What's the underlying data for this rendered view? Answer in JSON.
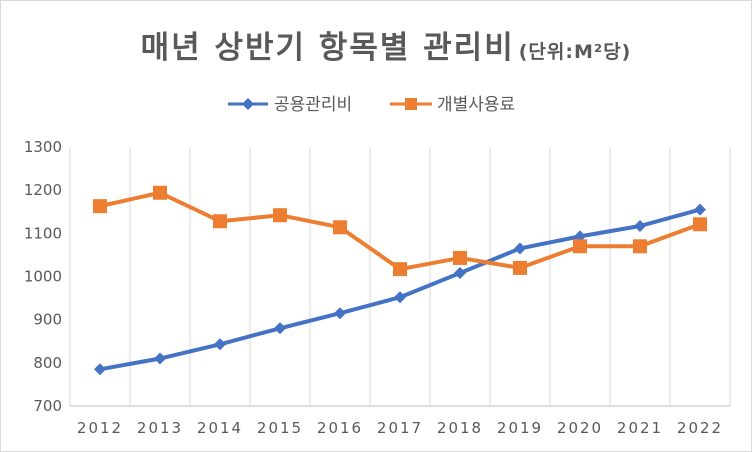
{
  "chart_data": {
    "type": "line",
    "title": "매년 상반기 항목별 관리비",
    "subtitle": "(단위:M²당)",
    "xlabel": "",
    "ylabel": "",
    "categories": [
      "2012",
      "2013",
      "2014",
      "2015",
      "2016",
      "2017",
      "2018",
      "2019",
      "2020",
      "2021",
      "2022"
    ],
    "series": [
      {
        "name": "공용관리비",
        "color": "#4472C4",
        "marker": "diamond",
        "values": [
          785,
          810,
          843,
          880,
          915,
          952,
          1008,
          1065,
          1093,
          1117,
          1155
        ]
      },
      {
        "name": "개별사용료",
        "color": "#ED7D31",
        "marker": "square",
        "values": [
          1163,
          1194,
          1128,
          1142,
          1114,
          1017,
          1043,
          1020,
          1070,
          1070,
          1121
        ]
      }
    ],
    "ylim": [
      700,
      1300
    ],
    "yticks": [
      700,
      800,
      900,
      1000,
      1100,
      1200,
      1300
    ],
    "grid": "vertical",
    "legend_position": "top"
  }
}
